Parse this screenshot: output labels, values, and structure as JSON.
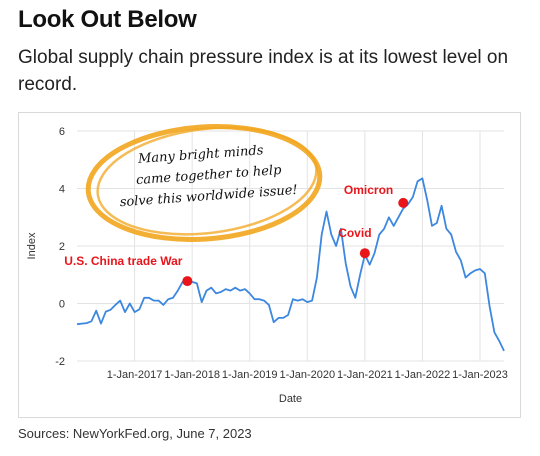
{
  "title": "Look Out Below",
  "subtitle": "Global supply chain pressure index is at its lowest level on record.",
  "source": "Sources: NewYorkFed.org, June 7, 2023",
  "note": {
    "lines": [
      "Many bright minds",
      "came together to help",
      "solve this worldwide issue!"
    ],
    "circle_color": "#f2a51e"
  },
  "chart_data": {
    "type": "line",
    "title": "",
    "xlabel": "Date",
    "ylabel": "Index",
    "ylim": [
      -2,
      6
    ],
    "yticks": [
      -2,
      0,
      2,
      4,
      6
    ],
    "xlim": [
      "2016-01",
      "2023-06"
    ],
    "xtick_labels": [
      "1-Jan-2017",
      "1-Jan-2018",
      "1-Jan-2019",
      "1-Jan-2020",
      "1-Jan-2021",
      "1-Jan-2022",
      "1-Jan-2023"
    ],
    "xtick_dates": [
      "2017-01",
      "2018-01",
      "2019-01",
      "2020-01",
      "2021-01",
      "2022-01",
      "2023-01"
    ],
    "grid": true,
    "line_color": "#3c87e0",
    "series": [
      {
        "name": "",
        "points": [
          [
            "2016-01",
            -0.72
          ],
          [
            "2016-03",
            -0.68
          ],
          [
            "2016-04",
            -0.62
          ],
          [
            "2016-05",
            -0.25
          ],
          [
            "2016-06",
            -0.7
          ],
          [
            "2016-07",
            -0.28
          ],
          [
            "2016-08",
            -0.22
          ],
          [
            "2016-09",
            -0.05
          ],
          [
            "2016-10",
            0.1
          ],
          [
            "2016-11",
            -0.3
          ],
          [
            "2016-12",
            0.0
          ],
          [
            "2017-01",
            -0.3
          ],
          [
            "2017-02",
            -0.2
          ],
          [
            "2017-03",
            0.2
          ],
          [
            "2017-04",
            0.2
          ],
          [
            "2017-05",
            0.1
          ],
          [
            "2017-06",
            0.1
          ],
          [
            "2017-07",
            -0.05
          ],
          [
            "2017-08",
            0.15
          ],
          [
            "2017-09",
            0.2
          ],
          [
            "2017-10",
            0.45
          ],
          [
            "2017-11",
            0.75
          ],
          [
            "2017-12",
            0.8
          ],
          [
            "2018-01",
            0.75
          ],
          [
            "2018-02",
            0.7
          ],
          [
            "2018-03",
            0.05
          ],
          [
            "2018-04",
            0.45
          ],
          [
            "2018-05",
            0.55
          ],
          [
            "2018-06",
            0.35
          ],
          [
            "2018-07",
            0.4
          ],
          [
            "2018-08",
            0.5
          ],
          [
            "2018-09",
            0.45
          ],
          [
            "2018-10",
            0.55
          ],
          [
            "2018-11",
            0.45
          ],
          [
            "2018-12",
            0.5
          ],
          [
            "2019-01",
            0.35
          ],
          [
            "2019-02",
            0.15
          ],
          [
            "2019-03",
            0.15
          ],
          [
            "2019-04",
            0.1
          ],
          [
            "2019-05",
            -0.05
          ],
          [
            "2019-06",
            -0.65
          ],
          [
            "2019-07",
            -0.5
          ],
          [
            "2019-08",
            -0.5
          ],
          [
            "2019-09",
            -0.4
          ],
          [
            "2019-10",
            0.15
          ],
          [
            "2019-11",
            0.1
          ],
          [
            "2019-12",
            0.15
          ],
          [
            "2020-01",
            0.05
          ],
          [
            "2020-02",
            0.1
          ],
          [
            "2020-03",
            0.9
          ],
          [
            "2020-04",
            2.4
          ],
          [
            "2020-05",
            3.2
          ],
          [
            "2020-06",
            2.4
          ],
          [
            "2020-07",
            2.0
          ],
          [
            "2020-08",
            2.6
          ],
          [
            "2020-09",
            1.4
          ],
          [
            "2020-10",
            0.6
          ],
          [
            "2020-11",
            0.2
          ],
          [
            "2020-12",
            1.0
          ],
          [
            "2021-01",
            1.7
          ],
          [
            "2021-02",
            1.35
          ],
          [
            "2021-03",
            1.75
          ],
          [
            "2021-04",
            2.4
          ],
          [
            "2021-05",
            2.6
          ],
          [
            "2021-06",
            3.0
          ],
          [
            "2021-07",
            2.7
          ],
          [
            "2021-08",
            3.0
          ],
          [
            "2021-09",
            3.3
          ],
          [
            "2021-10",
            3.45
          ],
          [
            "2021-11",
            3.7
          ],
          [
            "2021-12",
            4.25
          ],
          [
            "2022-01",
            4.35
          ],
          [
            "2022-02",
            3.6
          ],
          [
            "2022-03",
            2.7
          ],
          [
            "2022-04",
            2.8
          ],
          [
            "2022-05",
            3.4
          ],
          [
            "2022-06",
            2.6
          ],
          [
            "2022-07",
            2.4
          ],
          [
            "2022-08",
            1.8
          ],
          [
            "2022-09",
            1.5
          ],
          [
            "2022-10",
            0.9
          ],
          [
            "2022-11",
            1.05
          ],
          [
            "2022-12",
            1.15
          ],
          [
            "2023-01",
            1.2
          ],
          [
            "2023-02",
            1.05
          ],
          [
            "2023-03",
            -0.1
          ],
          [
            "2023-04",
            -1.0
          ],
          [
            "2023-05",
            -1.3
          ],
          [
            "2023-06",
            -1.65
          ]
        ]
      }
    ],
    "annotations": [
      {
        "label": "U.S. China trade War",
        "date": "2017-12",
        "value": 0.78,
        "color": "#e8161b"
      },
      {
        "label": "Covid",
        "date": "2021-01",
        "value": 1.75,
        "color": "#e8161b"
      },
      {
        "label": "Omicron",
        "date": "2021-09",
        "value": 3.5,
        "color": "#e8161b"
      }
    ]
  }
}
